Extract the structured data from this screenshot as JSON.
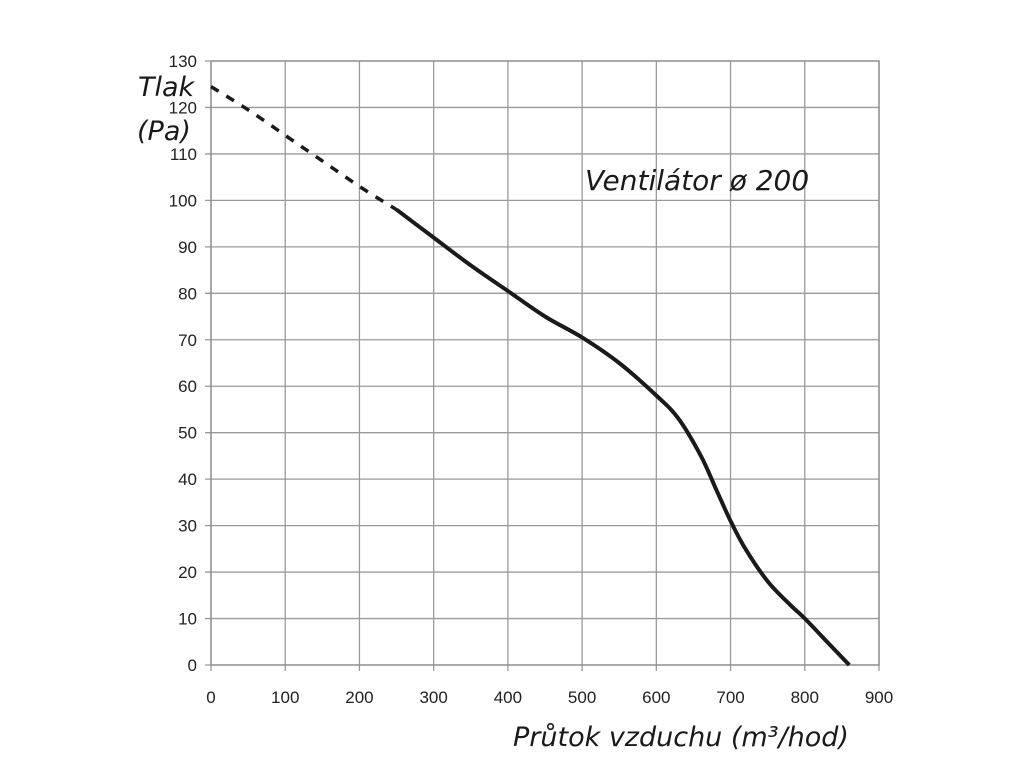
{
  "chart_data": {
    "type": "line",
    "xlabel": "Průtok vzduchu (m³/hod)",
    "ylabel_line1": "Tlak",
    "ylabel_line2": "(Pa)",
    "annotation": "Ventilátor ø 200",
    "xlim": [
      0,
      900
    ],
    "ylim": [
      0,
      130
    ],
    "x_ticks": [
      0,
      100,
      200,
      300,
      400,
      500,
      600,
      700,
      800,
      900
    ],
    "y_ticks": [
      0,
      10,
      20,
      30,
      40,
      50,
      60,
      70,
      80,
      90,
      100,
      110,
      120,
      130
    ],
    "grid": true,
    "series": [
      {
        "style": "dashed",
        "color": "#1a1a1a",
        "x": [
          0,
          50,
          100,
          150,
          200,
          250
        ],
        "y": [
          124.5,
          119.5,
          114,
          108.5,
          103,
          98
        ]
      },
      {
        "style": "solid",
        "color": "#1a1a1a",
        "x": [
          250,
          300,
          350,
          400,
          450,
          500,
          550,
          600,
          630,
          660,
          680,
          700,
          720,
          750,
          780,
          800,
          830,
          860
        ],
        "y": [
          98,
          92,
          86,
          80.5,
          75,
          70.5,
          65,
          58,
          53,
          45,
          38,
          31,
          25,
          18,
          13,
          10,
          5,
          0
        ]
      }
    ]
  }
}
